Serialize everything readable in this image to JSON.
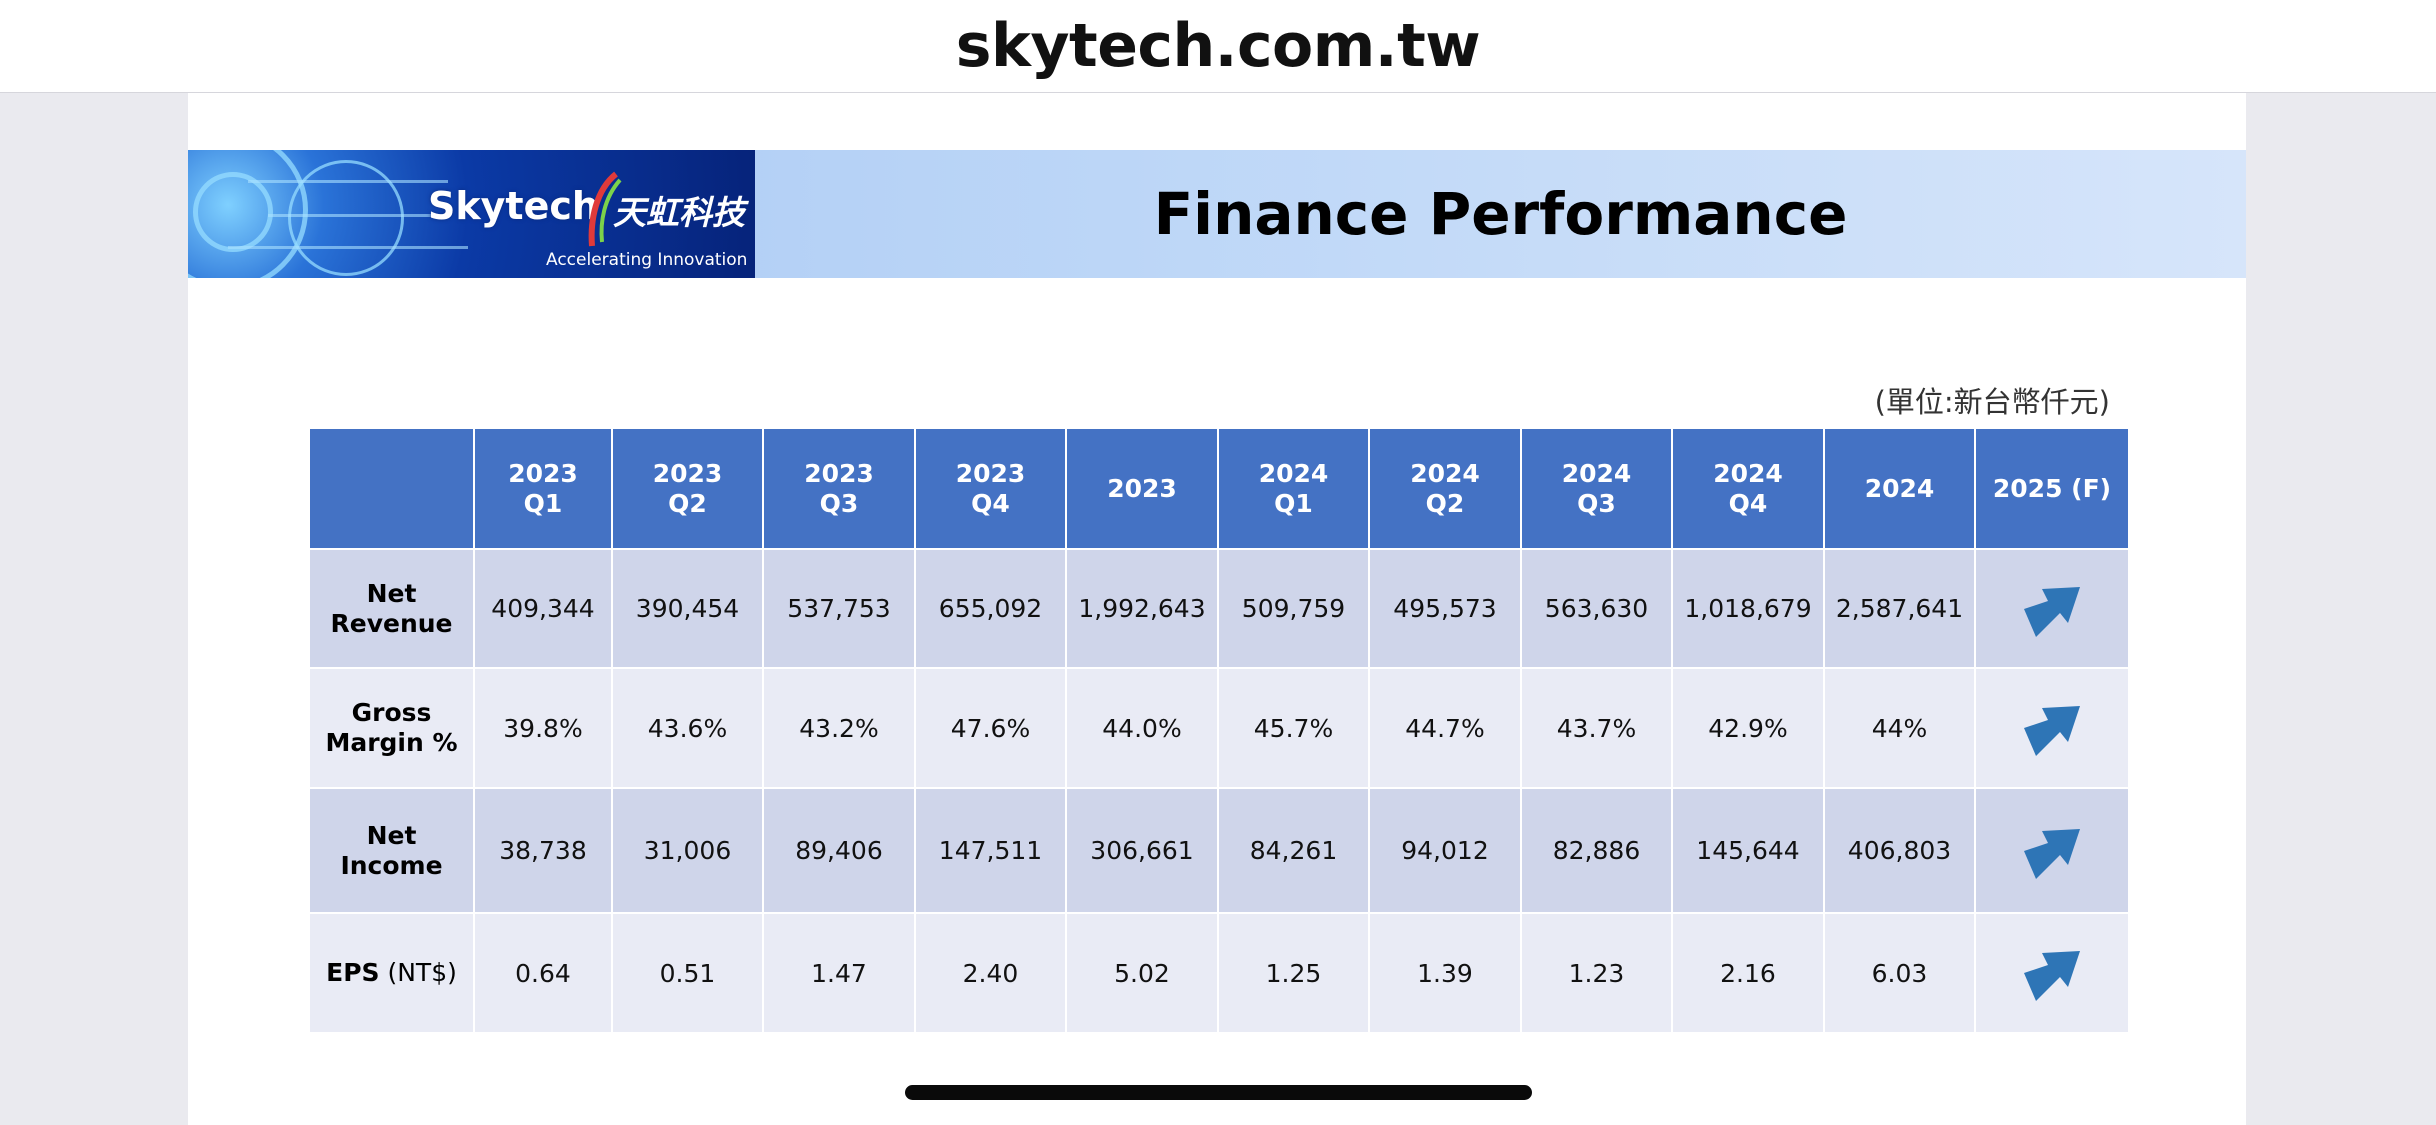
{
  "browser": {
    "url": "skytech.com.tw"
  },
  "banner": {
    "logo_text": "Skytech",
    "logo_text_cn": "天虹科技",
    "tagline": "Accelerating Innovation",
    "title": "Finance Performance"
  },
  "unit_note": "(單位:新台幣仟元)",
  "table": {
    "columns": [
      {
        "line1": "",
        "line2": ""
      },
      {
        "line1": "2023",
        "line2": "Q1"
      },
      {
        "line1": "2023",
        "line2": "Q2"
      },
      {
        "line1": "2023",
        "line2": "Q3"
      },
      {
        "line1": "2023",
        "line2": "Q4"
      },
      {
        "line1": "2023",
        "line2": ""
      },
      {
        "line1": "2024",
        "line2": "Q1"
      },
      {
        "line1": "2024",
        "line2": "Q2"
      },
      {
        "line1": "2024",
        "line2": "Q3"
      },
      {
        "line1": "2024",
        "line2": "Q4"
      },
      {
        "line1": "2024",
        "line2": ""
      },
      {
        "line1": "2025 (F)",
        "line2": ""
      }
    ],
    "rows": [
      {
        "label1": "Net",
        "label2": "Revenue",
        "unit": "",
        "values": [
          "409,344",
          "390,454",
          "537,753",
          "655,092",
          "1,992,643",
          "509,759",
          "495,573",
          "563,630",
          "1,018,679",
          "2,587,641"
        ],
        "forecast_icon": "arrow-up-right-icon"
      },
      {
        "label1": "Gross",
        "label2": "Margin %",
        "unit": "",
        "values": [
          "39.8%",
          "43.6%",
          "43.2%",
          "47.6%",
          "44.0%",
          "45.7%",
          "44.7%",
          "43.7%",
          "42.9%",
          "44%"
        ],
        "forecast_icon": "arrow-up-right-icon"
      },
      {
        "label1": "Net",
        "label2": "Income",
        "unit": "",
        "values": [
          "38,738",
          "31,006",
          "89,406",
          "147,511",
          "306,661",
          "84,261",
          "94,012",
          "82,886",
          "145,644",
          "406,803"
        ],
        "forecast_icon": "arrow-up-right-icon"
      },
      {
        "label1": "EPS",
        "label2": "",
        "unit": " (NT$)",
        "values": [
          "0.64",
          "0.51",
          "1.47",
          "2.40",
          "5.02",
          "1.25",
          "1.39",
          "1.23",
          "2.16",
          "6.03"
        ],
        "forecast_icon": "arrow-up-right-icon"
      }
    ]
  },
  "colors": {
    "header_bg": "#4472c4",
    "row_dark": "#cfd5ea",
    "row_light": "#e9ebf5",
    "arrow": "#2e75b6"
  }
}
